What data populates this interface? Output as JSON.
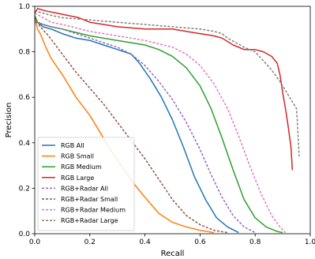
{
  "chart_data": {
    "type": "line",
    "xlabel": "Recall",
    "ylabel": "Precision",
    "xlim": [
      0.0,
      1.0
    ],
    "ylim": [
      0.0,
      1.0
    ],
    "xticks": [
      "0.0",
      "0.2",
      "0.4",
      "0.6",
      "0.8",
      "1.0"
    ],
    "yticks": [
      "0.0",
      "0.2",
      "0.4",
      "0.6",
      "0.8",
      "1.0"
    ],
    "grid": false,
    "legend_position": "lower-left",
    "series": [
      {
        "name": "RGB All",
        "color": "#1f77b4",
        "dash": "solid",
        "points": [
          [
            0.0,
            0.95
          ],
          [
            0.01,
            0.93
          ],
          [
            0.03,
            0.91
          ],
          [
            0.06,
            0.9
          ],
          [
            0.1,
            0.88
          ],
          [
            0.15,
            0.86
          ],
          [
            0.2,
            0.85
          ],
          [
            0.25,
            0.83
          ],
          [
            0.3,
            0.81
          ],
          [
            0.35,
            0.79
          ],
          [
            0.38,
            0.75
          ],
          [
            0.42,
            0.68
          ],
          [
            0.46,
            0.6
          ],
          [
            0.5,
            0.5
          ],
          [
            0.54,
            0.38
          ],
          [
            0.58,
            0.25
          ],
          [
            0.62,
            0.15
          ],
          [
            0.66,
            0.07
          ],
          [
            0.7,
            0.03
          ],
          [
            0.74,
            0.005
          ]
        ]
      },
      {
        "name": "RGB Small",
        "color": "#ff7f0e",
        "dash": "solid",
        "points": [
          [
            0.0,
            0.95
          ],
          [
            0.01,
            0.9
          ],
          [
            0.02,
            0.88
          ],
          [
            0.04,
            0.82
          ],
          [
            0.06,
            0.77
          ],
          [
            0.1,
            0.7
          ],
          [
            0.15,
            0.6
          ],
          [
            0.2,
            0.52
          ],
          [
            0.24,
            0.44
          ],
          [
            0.28,
            0.36
          ],
          [
            0.32,
            0.29
          ],
          [
            0.36,
            0.22
          ],
          [
            0.4,
            0.16
          ],
          [
            0.45,
            0.09
          ],
          [
            0.5,
            0.05
          ],
          [
            0.55,
            0.03
          ],
          [
            0.6,
            0.015
          ],
          [
            0.65,
            0.005
          ]
        ]
      },
      {
        "name": "RGB Medium",
        "color": "#2ca02c",
        "dash": "solid",
        "points": [
          [
            0.0,
            0.96
          ],
          [
            0.01,
            0.93
          ],
          [
            0.03,
            0.92
          ],
          [
            0.06,
            0.91
          ],
          [
            0.1,
            0.9
          ],
          [
            0.2,
            0.87
          ],
          [
            0.3,
            0.85
          ],
          [
            0.4,
            0.83
          ],
          [
            0.45,
            0.81
          ],
          [
            0.5,
            0.78
          ],
          [
            0.55,
            0.73
          ],
          [
            0.6,
            0.65
          ],
          [
            0.64,
            0.55
          ],
          [
            0.68,
            0.42
          ],
          [
            0.72,
            0.28
          ],
          [
            0.76,
            0.15
          ],
          [
            0.8,
            0.07
          ],
          [
            0.84,
            0.03
          ],
          [
            0.88,
            0.01
          ],
          [
            0.9,
            0.005
          ]
        ]
      },
      {
        "name": "RGB Large",
        "color": "#d62728",
        "dash": "solid",
        "points": [
          [
            0.0,
            0.97
          ],
          [
            0.01,
            0.99
          ],
          [
            0.04,
            0.98
          ],
          [
            0.08,
            0.97
          ],
          [
            0.12,
            0.96
          ],
          [
            0.16,
            0.95
          ],
          [
            0.2,
            0.93
          ],
          [
            0.25,
            0.92
          ],
          [
            0.3,
            0.91
          ],
          [
            0.4,
            0.9
          ],
          [
            0.5,
            0.9
          ],
          [
            0.55,
            0.89
          ],
          [
            0.6,
            0.88
          ],
          [
            0.65,
            0.87
          ],
          [
            0.68,
            0.86
          ],
          [
            0.72,
            0.83
          ],
          [
            0.76,
            0.81
          ],
          [
            0.8,
            0.81
          ],
          [
            0.83,
            0.8
          ],
          [
            0.86,
            0.78
          ],
          [
            0.88,
            0.75
          ],
          [
            0.89,
            0.7
          ],
          [
            0.9,
            0.62
          ],
          [
            0.91,
            0.55
          ],
          [
            0.92,
            0.47
          ],
          [
            0.93,
            0.38
          ],
          [
            0.935,
            0.28
          ]
        ]
      },
      {
        "name": "RGB+Radar All",
        "color": "#9467bd",
        "dash": "dashed",
        "points": [
          [
            0.0,
            0.93
          ],
          [
            0.03,
            0.92
          ],
          [
            0.06,
            0.91
          ],
          [
            0.1,
            0.9
          ],
          [
            0.15,
            0.88
          ],
          [
            0.2,
            0.86
          ],
          [
            0.25,
            0.84
          ],
          [
            0.3,
            0.82
          ],
          [
            0.35,
            0.79
          ],
          [
            0.4,
            0.74
          ],
          [
            0.45,
            0.67
          ],
          [
            0.5,
            0.59
          ],
          [
            0.55,
            0.49
          ],
          [
            0.6,
            0.37
          ],
          [
            0.64,
            0.26
          ],
          [
            0.68,
            0.16
          ],
          [
            0.72,
            0.08
          ],
          [
            0.76,
            0.03
          ],
          [
            0.8,
            0.005
          ]
        ]
      },
      {
        "name": "RGB+Radar Small",
        "color": "#8c564b",
        "dash": "dashed",
        "points": [
          [
            0.0,
            0.95
          ],
          [
            0.02,
            0.91
          ],
          [
            0.05,
            0.87
          ],
          [
            0.1,
            0.79
          ],
          [
            0.15,
            0.71
          ],
          [
            0.2,
            0.64
          ],
          [
            0.25,
            0.57
          ],
          [
            0.3,
            0.49
          ],
          [
            0.35,
            0.41
          ],
          [
            0.4,
            0.33
          ],
          [
            0.45,
            0.24
          ],
          [
            0.5,
            0.15
          ],
          [
            0.55,
            0.08
          ],
          [
            0.6,
            0.04
          ],
          [
            0.65,
            0.015
          ],
          [
            0.7,
            0.005
          ]
        ]
      },
      {
        "name": "RGB+Radar Medium",
        "color": "#e377c2",
        "dash": "dashed",
        "points": [
          [
            0.0,
            0.97
          ],
          [
            0.03,
            0.95
          ],
          [
            0.06,
            0.93
          ],
          [
            0.1,
            0.92
          ],
          [
            0.2,
            0.89
          ],
          [
            0.3,
            0.87
          ],
          [
            0.4,
            0.85
          ],
          [
            0.5,
            0.82
          ],
          [
            0.55,
            0.79
          ],
          [
            0.6,
            0.74
          ],
          [
            0.65,
            0.66
          ],
          [
            0.7,
            0.55
          ],
          [
            0.74,
            0.43
          ],
          [
            0.78,
            0.3
          ],
          [
            0.82,
            0.18
          ],
          [
            0.86,
            0.08
          ],
          [
            0.89,
            0.03
          ],
          [
            0.91,
            0.005
          ]
        ]
      },
      {
        "name": "RGB+Radar Large",
        "color": "#7f7f7f",
        "dash": "dashed",
        "points": [
          [
            0.0,
            0.98
          ],
          [
            0.03,
            0.97
          ],
          [
            0.06,
            0.96
          ],
          [
            0.1,
            0.95
          ],
          [
            0.2,
            0.94
          ],
          [
            0.3,
            0.93
          ],
          [
            0.4,
            0.92
          ],
          [
            0.5,
            0.91
          ],
          [
            0.6,
            0.9
          ],
          [
            0.65,
            0.89
          ],
          [
            0.68,
            0.88
          ],
          [
            0.7,
            0.86
          ],
          [
            0.73,
            0.84
          ],
          [
            0.76,
            0.82
          ],
          [
            0.8,
            0.8
          ],
          [
            0.83,
            0.76
          ],
          [
            0.86,
            0.72
          ],
          [
            0.89,
            0.67
          ],
          [
            0.91,
            0.63
          ],
          [
            0.93,
            0.59
          ],
          [
            0.95,
            0.55
          ],
          [
            0.955,
            0.45
          ],
          [
            0.96,
            0.34
          ]
        ]
      }
    ]
  }
}
